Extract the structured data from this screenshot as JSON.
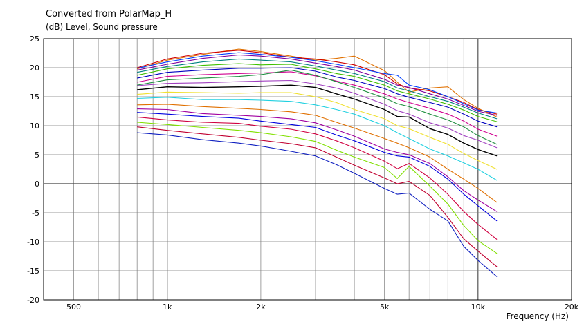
{
  "chart_data": {
    "type": "line",
    "title": "Converted from PolarMap_H",
    "ylabel": "(dB)  Level, Sound pressure",
    "xlabel": "Frequency  (Hz)",
    "xscale": "log",
    "xlim": [
      400,
      20000
    ],
    "ylim": [
      -20,
      25
    ],
    "grid": true,
    "x_tick_labels": [
      {
        "value": 500,
        "label": "500"
      },
      {
        "value": 1000,
        "label": "1k"
      },
      {
        "value": 2000,
        "label": "2k"
      },
      {
        "value": 5000,
        "label": "5k"
      },
      {
        "value": 10000,
        "label": "10k"
      },
      {
        "value": 20000,
        "label": "20k"
      }
    ],
    "y_ticks": [
      25,
      20,
      15,
      10,
      5,
      0,
      -5,
      -10,
      -15,
      -20
    ],
    "x": [
      800,
      1000,
      1300,
      1700,
      2000,
      2500,
      3000,
      3500,
      4000,
      5000,
      5500,
      6000,
      7000,
      8000,
      9000,
      10000,
      11500
    ],
    "series": [
      {
        "color": "#e07000",
        "values": [
          19.8,
          21.3,
          22.3,
          23.2,
          22.8,
          22.0,
          21.3,
          21.6,
          22.0,
          19.5,
          17.5,
          15.8,
          16.5,
          16.7,
          14.5,
          13.0,
          11.5
        ]
      },
      {
        "color": "#d00000",
        "values": [
          20.0,
          21.5,
          22.5,
          23.0,
          22.6,
          21.8,
          21.5,
          21.0,
          20.5,
          18.8,
          17.2,
          16.5,
          16.0,
          15.0,
          14.0,
          12.8,
          12.0
        ]
      },
      {
        "color": "#0040ff",
        "values": [
          19.9,
          21.0,
          22.0,
          22.6,
          22.3,
          21.8,
          21.2,
          20.6,
          20.0,
          19.0,
          18.7,
          17.0,
          16.2,
          15.0,
          13.8,
          12.7,
          12.2
        ]
      },
      {
        "color": "#8000a0",
        "values": [
          19.6,
          20.6,
          21.6,
          22.2,
          22.0,
          21.5,
          20.8,
          20.2,
          19.6,
          18.0,
          17.0,
          16.6,
          15.5,
          14.6,
          13.5,
          12.5,
          11.8
        ]
      },
      {
        "color": "#008080",
        "values": [
          19.2,
          20.2,
          21.0,
          21.5,
          21.3,
          21.0,
          20.3,
          19.6,
          19.0,
          17.6,
          16.5,
          16.0,
          15.0,
          14.2,
          13.2,
          12.2,
          11.2
        ]
      },
      {
        "color": "#40c000",
        "values": [
          18.7,
          19.8,
          20.4,
          20.7,
          20.5,
          20.6,
          19.8,
          19.0,
          18.5,
          17.0,
          16.0,
          15.5,
          14.6,
          13.7,
          12.7,
          11.6,
          10.7
        ]
      },
      {
        "color": "#0000c0",
        "values": [
          18.2,
          19.2,
          19.6,
          19.9,
          19.9,
          20.0,
          19.4,
          18.4,
          17.8,
          16.4,
          15.5,
          14.9,
          14.0,
          13.2,
          12.0,
          10.8,
          9.8
        ]
      },
      {
        "color": "#d00090",
        "values": [
          17.5,
          18.5,
          18.8,
          19.0,
          19.1,
          19.3,
          18.6,
          17.7,
          17.0,
          15.5,
          14.6,
          14.0,
          13.0,
          12.0,
          10.8,
          9.4,
          8.2
        ]
      },
      {
        "color": "#209040",
        "values": [
          17.0,
          17.9,
          18.2,
          18.5,
          18.8,
          19.6,
          18.7,
          17.6,
          16.6,
          14.8,
          13.8,
          13.3,
          12.0,
          11.0,
          9.8,
          8.3,
          6.8
        ]
      },
      {
        "color": "#a040c0",
        "values": [
          16.9,
          17.3,
          17.4,
          17.6,
          17.7,
          17.8,
          17.2,
          16.5,
          15.6,
          13.7,
          12.6,
          12.0,
          10.5,
          9.6,
          8.3,
          7.5,
          6.2
        ]
      },
      {
        "color": "#000000",
        "values": [
          16.2,
          16.7,
          16.6,
          16.7,
          16.8,
          17.0,
          16.6,
          15.5,
          14.6,
          12.8,
          11.6,
          11.5,
          9.5,
          8.5,
          7.0,
          5.9,
          4.8
        ]
      },
      {
        "color": "#f0e030",
        "values": [
          15.4,
          15.8,
          15.7,
          15.6,
          15.7,
          15.7,
          15.0,
          14.0,
          12.8,
          11.2,
          10.0,
          9.5,
          8.0,
          6.8,
          5.2,
          4.0,
          2.5
        ]
      },
      {
        "color": "#20d0e0",
        "values": [
          14.7,
          14.9,
          14.5,
          14.5,
          14.4,
          14.2,
          13.6,
          12.8,
          12.0,
          10.0,
          8.8,
          7.8,
          6.0,
          4.8,
          3.6,
          2.5,
          0.6
        ]
      },
      {
        "color": "#e07000",
        "values": [
          13.6,
          13.7,
          13.3,
          13.0,
          12.8,
          12.4,
          11.8,
          10.6,
          9.6,
          7.8,
          7.0,
          6.2,
          4.6,
          2.5,
          0.8,
          -0.8,
          -3.2
        ]
      },
      {
        "color": "#a000a0",
        "values": [
          12.9,
          12.8,
          12.1,
          11.8,
          11.6,
          11.2,
          10.5,
          9.3,
          8.2,
          6.0,
          5.4,
          5.0,
          3.5,
          1.2,
          -1.2,
          -2.8,
          -4.8
        ]
      },
      {
        "color": "#0000e0",
        "values": [
          12.3,
          12.0,
          11.6,
          11.3,
          10.8,
          10.2,
          9.7,
          8.4,
          7.4,
          5.4,
          4.8,
          4.6,
          3.0,
          0.8,
          -1.8,
          -3.8,
          -6.4
        ]
      },
      {
        "color": "#d00040",
        "values": [
          11.5,
          11.0,
          10.6,
          10.4,
          9.9,
          9.4,
          8.6,
          7.4,
          6.2,
          3.9,
          2.6,
          3.5,
          1.0,
          -1.8,
          -4.8,
          -7.0,
          -9.6
        ]
      },
      {
        "color": "#80e000",
        "values": [
          10.6,
          10.2,
          9.7,
          9.2,
          8.8,
          8.1,
          7.3,
          5.8,
          4.6,
          2.8,
          0.9,
          3.0,
          -0.4,
          -3.5,
          -7.2,
          -9.8,
          -12.0
        ]
      },
      {
        "color": "#c00030",
        "values": [
          9.8,
          9.2,
          8.6,
          8.0,
          7.5,
          6.9,
          6.2,
          4.6,
          3.2,
          1.0,
          0.0,
          0.4,
          -2.0,
          -5.8,
          -9.5,
          -11.6,
          -14.3
        ]
      },
      {
        "color": "#1020c0",
        "values": [
          8.8,
          8.4,
          7.6,
          7.0,
          6.5,
          5.6,
          4.8,
          3.3,
          1.8,
          -0.8,
          -1.8,
          -1.6,
          -4.4,
          -6.4,
          -10.8,
          -13.2,
          -16.0
        ]
      }
    ]
  }
}
